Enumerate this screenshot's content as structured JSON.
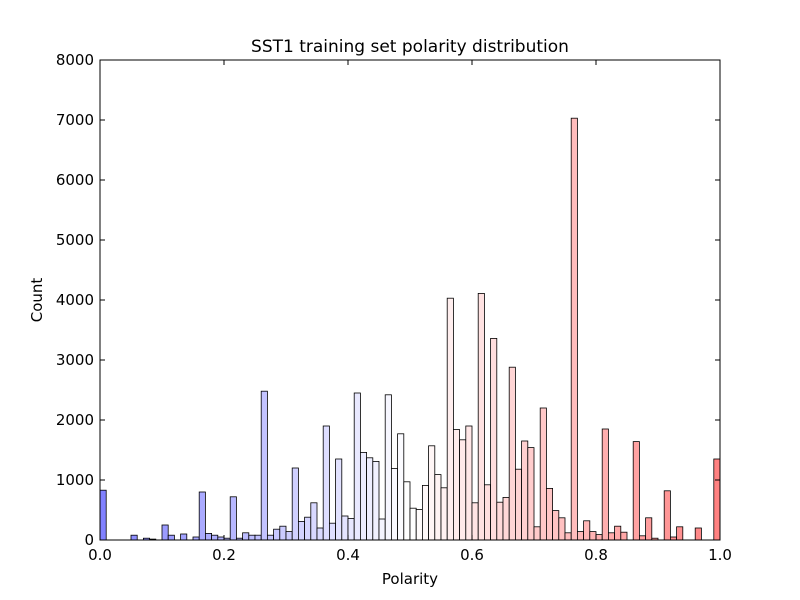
{
  "chart_data": {
    "type": "bar",
    "title": "SST1 training set polarity distribution",
    "xlabel": "Polarity",
    "ylabel": "Count",
    "xlim": [
      0.0,
      1.0
    ],
    "ylim": [
      0,
      8000
    ],
    "x_ticks": [
      "0.0",
      "0.2",
      "0.4",
      "0.6",
      "0.8",
      "1.0"
    ],
    "y_ticks": [
      "0",
      "1000",
      "2000",
      "3000",
      "4000",
      "5000",
      "6000",
      "7000",
      "8000"
    ],
    "grid": false,
    "colormap": "bwr",
    "color_low": "#8080ff",
    "color_mid": "#ffffff",
    "color_high": "#ff8080",
    "bins": 100,
    "bin_width": 0.01,
    "values": [
      830,
      0,
      0,
      0,
      0,
      80,
      0,
      30,
      15,
      0,
      250,
      80,
      0,
      100,
      0,
      50,
      800,
      110,
      80,
      50,
      30,
      720,
      30,
      120,
      80,
      80,
      2480,
      80,
      180,
      230,
      140,
      1200,
      310,
      380,
      620,
      200,
      1900,
      280,
      1350,
      400,
      360,
      2450,
      1460,
      1370,
      1310,
      350,
      2420,
      1190,
      1770,
      970,
      530,
      510,
      910,
      1570,
      1090,
      870,
      4030,
      1840,
      1670,
      1900,
      620,
      4110,
      920,
      3360,
      630,
      710,
      2880,
      1180,
      1650,
      1540,
      220,
      2200,
      860,
      490,
      370,
      120,
      7030,
      140,
      320,
      140,
      90,
      1850,
      120,
      230,
      130,
      0,
      1640,
      70,
      370,
      30,
      0,
      820,
      50,
      220,
      0,
      0,
      200,
      0,
      0,
      1350
    ]
  }
}
